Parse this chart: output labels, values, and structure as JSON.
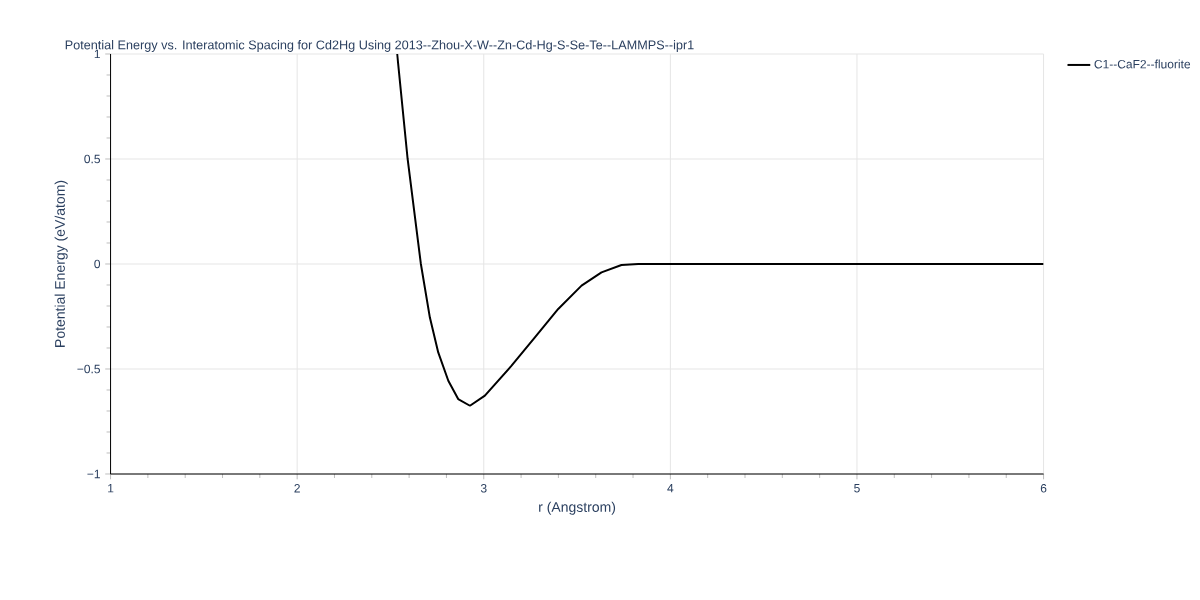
{
  "chart_data": {
    "type": "line",
    "title": "Potential Energy vs. Interatomic Spacing for Cd2Hg Using 2013--Zhou-X-W--Zn-Cd-Hg-S-Se-Te--LAMMPS--ipr1",
    "xlabel": "r (Angstrom)",
    "ylabel": "Potential Energy (eV/atom)",
    "x": [
      2.536,
      2.592,
      2.663,
      2.711,
      2.756,
      2.81,
      2.863,
      2.926,
      3.006,
      3.149,
      3.274,
      3.399,
      3.524,
      3.631,
      3.738,
      3.828,
      4.5,
      5.0,
      5.5,
      6.0
    ],
    "series": [
      {
        "name": "C1--CaF2--fluorite",
        "color": "#000000",
        "values": [
          1.0,
          0.5,
          0.0,
          -0.254,
          -0.421,
          -0.556,
          -0.643,
          -0.675,
          -0.627,
          -0.484,
          -0.349,
          -0.214,
          -0.103,
          -0.04,
          -0.005,
          0.0,
          0.0,
          0.0,
          0.0,
          0.0
        ]
      }
    ],
    "xlim": [
      1,
      6
    ],
    "ylim": [
      -1,
      1
    ],
    "xticks": [
      1,
      2,
      3,
      4,
      5,
      6
    ],
    "yticks": [
      {
        "value": -1,
        "label": "−1"
      },
      {
        "value": -0.5,
        "label": "−0.5"
      },
      0,
      0.5,
      1
    ],
    "grid": true,
    "legend": "top right",
    "marker": "none",
    "line_style": "solid"
  }
}
